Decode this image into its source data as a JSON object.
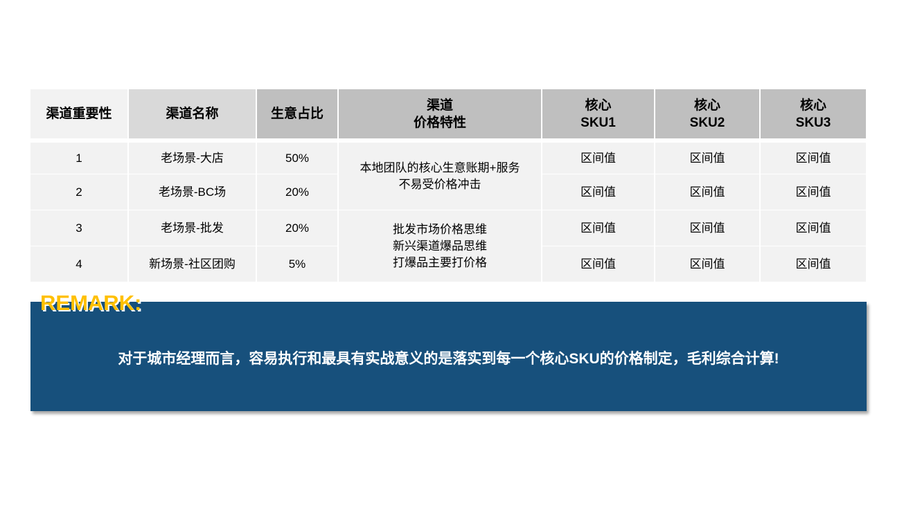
{
  "table": {
    "headers": [
      "渠道重要性",
      "渠道名称",
      "生意占比",
      "渠道\n价格特性",
      "核心\nSKU1",
      "核心\nSKU2",
      "核心\nSKU3"
    ],
    "rows": [
      {
        "rank": "1",
        "name": "老场景-大店",
        "share": "50%",
        "sku1": "区间值",
        "sku2": "区间值",
        "sku3": "区间值"
      },
      {
        "rank": "2",
        "name": "老场景-BC场",
        "share": "20%",
        "sku1": "区间值",
        "sku2": "区间值",
        "sku3": "区间值"
      },
      {
        "rank": "3",
        "name": "老场景-批发",
        "share": "20%",
        "sku1": "区间值",
        "sku2": "区间值",
        "sku3": "区间值"
      },
      {
        "rank": "4",
        "name": "新场景-社区团购",
        "share": "5%",
        "sku1": "区间值",
        "sku2": "区间值",
        "sku3": "区间值"
      }
    ],
    "price_traits": [
      "本地团队的核心生意账期+服务\n不易受价格冲击",
      "批发市场价格思维\n新兴渠道爆品思维\n打爆品主要打价格"
    ]
  },
  "remark": {
    "title": "REMARK:",
    "text": "对于城市经理而言，容易执行和最具有实战意义的是落实到每一个核心SKU的价格制定，毛利综合计算!"
  },
  "colors": {
    "remark_bg": "#17507c",
    "remark_title": "#ffc000",
    "header_dark": "#bfbfbf",
    "cell_bg": "#f2f2f2"
  }
}
